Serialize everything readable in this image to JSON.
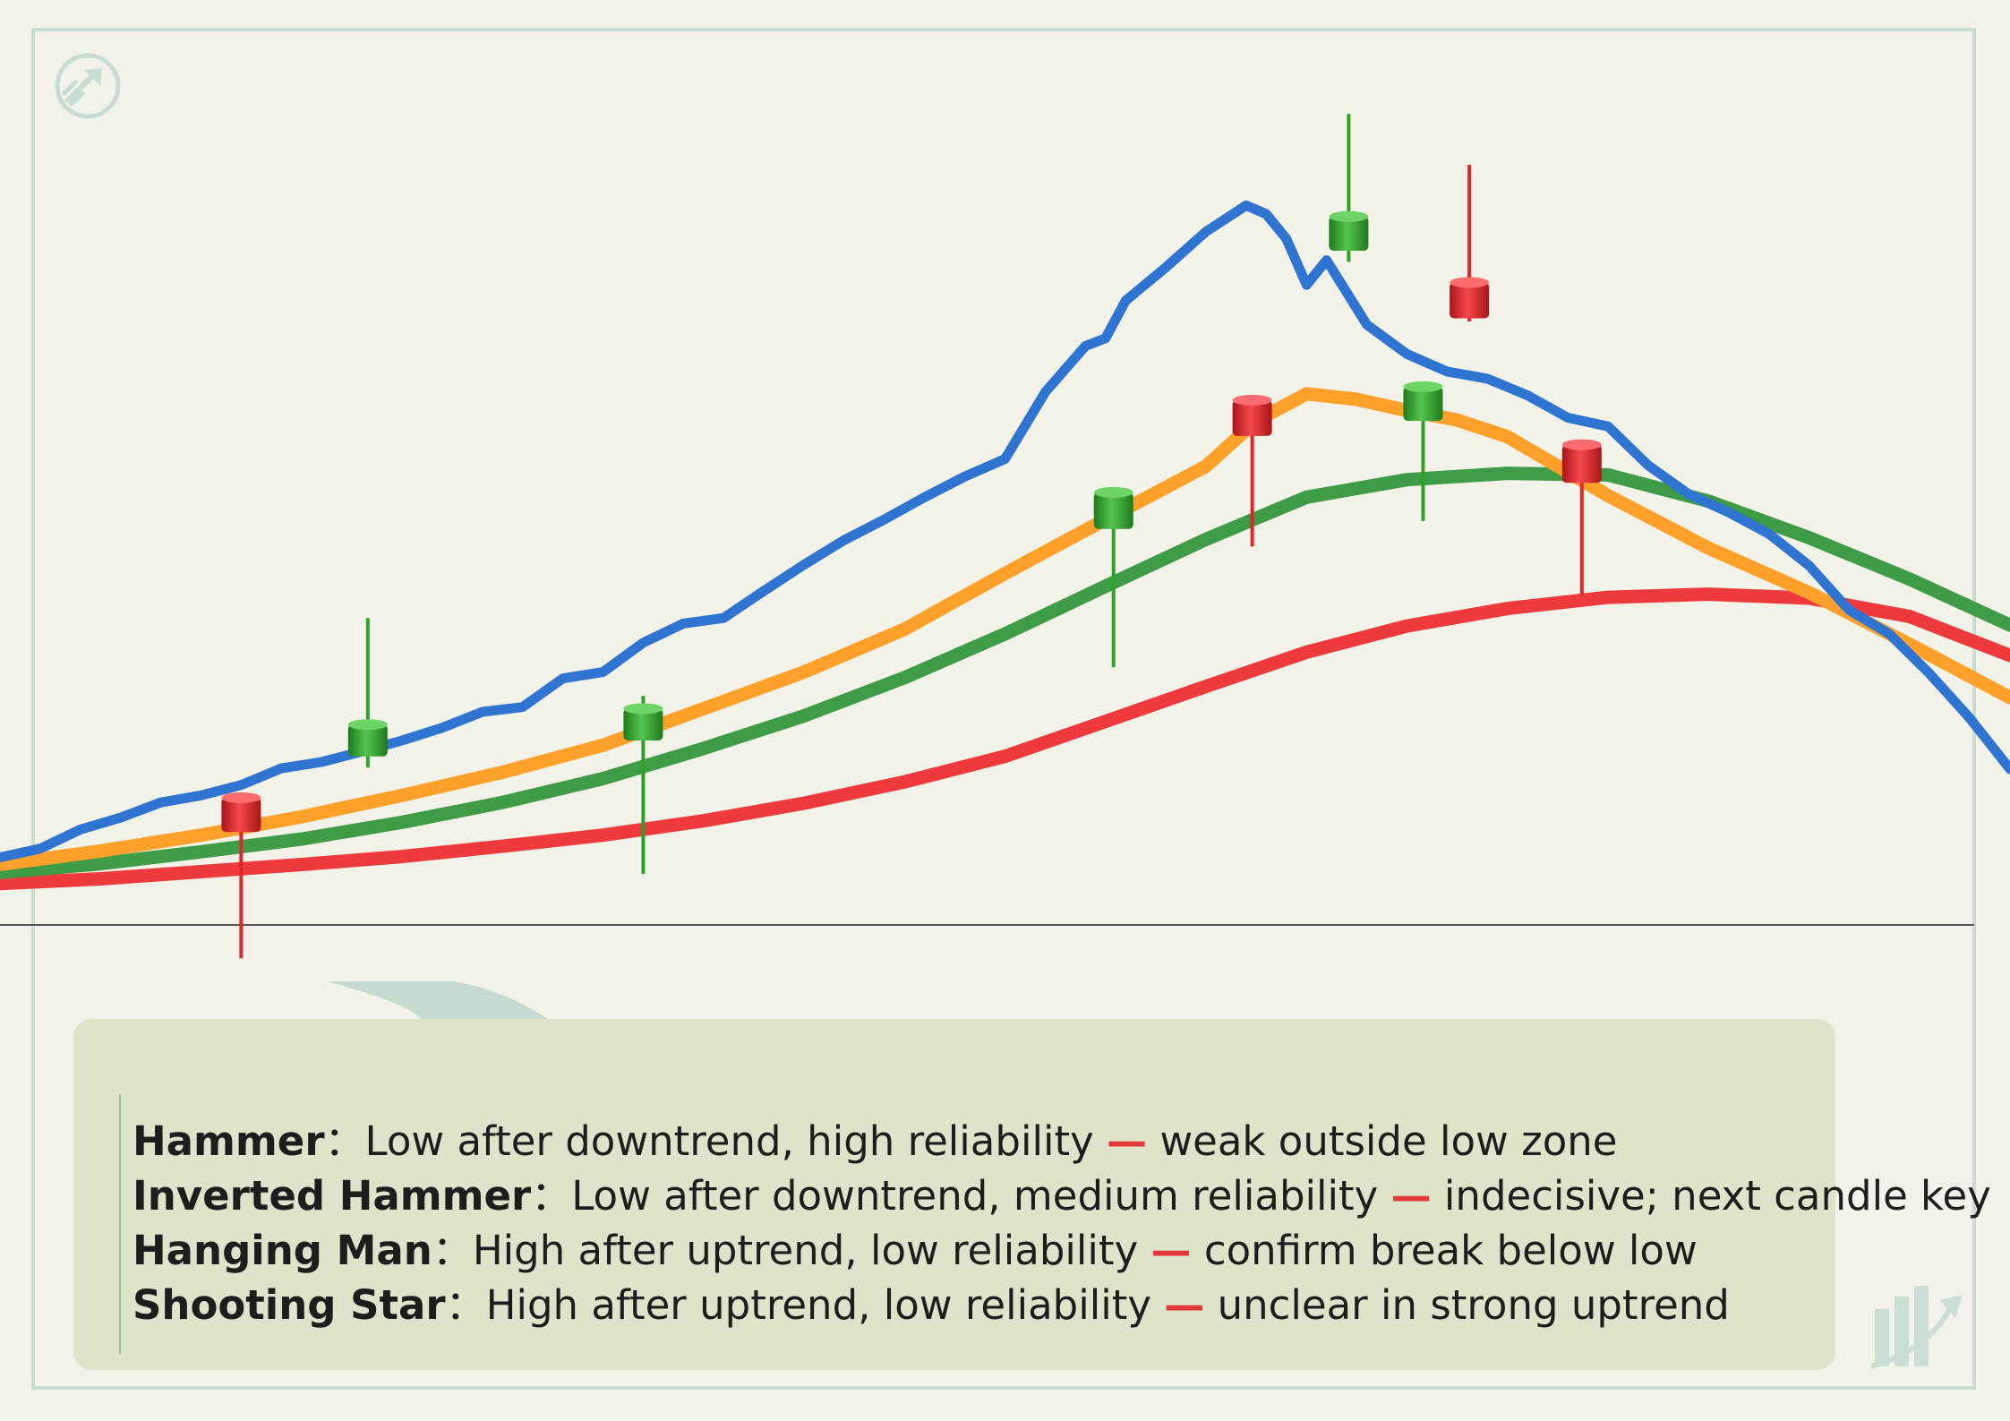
{
  "colors": {
    "background": "#f2f2e8",
    "frame": "#c7ddd3",
    "price_line": "#2f74d0",
    "orange_ma": "#ffa02a",
    "green_ma": "#3d9c45",
    "red_ma": "#ef3a3d",
    "bull_candle": "#2fa02a",
    "bear_candle": "#e0262b",
    "baseline": "#555555",
    "legend_panel": "#dfe3c9",
    "legend_dash": "#e23a3a",
    "logo": "#c7ddd3"
  },
  "icons": {
    "logo": "rising-arrow-circle-icon",
    "watermark": "rising-bars-arrow-icon"
  },
  "chart_data": {
    "type": "line",
    "title": "",
    "xlabel": "",
    "ylabel": "",
    "grid": false,
    "axes_labeled": false,
    "legend_placement": "bottom-left",
    "xlim": [
      0,
      100
    ],
    "ylim": [
      0,
      100
    ],
    "series": [
      {
        "role": "price",
        "color": "#2f74d0",
        "x": [
          0,
          2,
          4,
          6,
          8,
          10,
          12,
          14,
          16,
          18,
          20,
          22,
          24,
          26,
          28,
          30,
          32,
          34,
          36,
          38,
          40,
          42,
          44,
          46,
          48,
          50,
          52,
          54,
          55,
          56,
          58,
          60,
          62,
          63,
          64,
          65,
          66,
          68,
          70,
          72,
          74,
          76,
          78,
          80,
          82,
          84,
          86,
          88,
          90,
          92,
          94,
          96,
          98,
          100
        ],
        "y": [
          8.5,
          9.6,
          12,
          13.5,
          15.4,
          16.3,
          17.6,
          19.7,
          20.5,
          21.8,
          23.2,
          24.8,
          26.8,
          27.4,
          31,
          31.8,
          35.5,
          37.9,
          38.6,
          42,
          45.3,
          48.4,
          51,
          53.8,
          56.4,
          58.6,
          67,
          72.8,
          73.8,
          78.5,
          82.7,
          87.2,
          90.5,
          89.4,
          86.3,
          80.5,
          83.6,
          75.5,
          71.8,
          69.6,
          68.7,
          66.6,
          63.8,
          62.7,
          57.8,
          54.2,
          51.9,
          49.2,
          45.2,
          39.6,
          36.6,
          31.6,
          26,
          19.6
        ]
      },
      {
        "role": "ma-fast",
        "color": "#ffa02a",
        "x": [
          0,
          5,
          10,
          15,
          20,
          25,
          30,
          35,
          40,
          45,
          50,
          55,
          60,
          62.5,
          65,
          67.5,
          70,
          72.5,
          75,
          80,
          85,
          90,
          95,
          100
        ],
        "y": [
          7.6,
          9.3,
          11.3,
          13.6,
          16.3,
          19.2,
          22.6,
          27.2,
          31.8,
          37.2,
          44.2,
          51,
          57.7,
          63.4,
          66.8,
          66.1,
          64.7,
          63.5,
          61.4,
          54,
          47.4,
          41.8,
          35.3,
          28.6
        ]
      },
      {
        "role": "ma-medium",
        "color": "#3d9c45",
        "x": [
          0,
          5,
          10,
          15,
          20,
          25,
          30,
          35,
          40,
          45,
          50,
          55,
          60,
          65,
          70,
          75,
          80,
          85,
          90,
          95,
          100
        ],
        "y": [
          6.6,
          7.7,
          9.2,
          10.8,
          12.9,
          15.4,
          18.4,
          22.2,
          26.3,
          31.1,
          36.6,
          42.6,
          48.5,
          53.8,
          56,
          56.8,
          56.6,
          53.3,
          48.7,
          43.5,
          37.7
        ]
      },
      {
        "role": "ma-slow",
        "color": "#ef3a3d",
        "x": [
          0,
          5,
          10,
          15,
          20,
          25,
          30,
          35,
          40,
          45,
          50,
          55,
          60,
          65,
          70,
          75,
          80,
          85,
          90,
          95,
          100
        ],
        "y": [
          5.2,
          5.8,
          6.7,
          7.6,
          8.6,
          9.9,
          11.3,
          13.1,
          15.3,
          18,
          21.2,
          25.6,
          30,
          34.3,
          37.6,
          39.8,
          41.2,
          41.6,
          41.1,
          38.8,
          33.9
        ]
      }
    ],
    "candles": [
      {
        "x": 12,
        "open": 16,
        "close": 11.7,
        "high": 16,
        "low": -4.2,
        "color": "bear"
      },
      {
        "x": 18.3,
        "open": 21.2,
        "close": 25.2,
        "high": 38.6,
        "low": 19.8,
        "color": "bull"
      },
      {
        "x": 32,
        "open": 23.2,
        "close": 27.2,
        "high": 28.8,
        "low": 6.4,
        "color": "bull"
      },
      {
        "x": 55.4,
        "open": 49.8,
        "close": 54.4,
        "high": 54.4,
        "low": 32.4,
        "color": "bull"
      },
      {
        "x": 62.3,
        "open": 66,
        "close": 61.5,
        "high": 66,
        "low": 47.6,
        "color": "bear"
      },
      {
        "x": 67.1,
        "open": 84.8,
        "close": 89.1,
        "high": 102,
        "low": 83.4,
        "color": "bull"
      },
      {
        "x": 70.8,
        "open": 63.4,
        "close": 67.7,
        "high": 67.7,
        "low": 50.8,
        "color": "bull"
      },
      {
        "x": 73.1,
        "open": 80.8,
        "close": 76.3,
        "high": 95.6,
        "low": 75.9,
        "color": "bear"
      },
      {
        "x": 78.7,
        "open": 60.4,
        "close": 55.6,
        "high": 60.4,
        "low": 41.4,
        "color": "bear"
      }
    ]
  },
  "legend": {
    "items": [
      {
        "term": "Hammer",
        "sep": "：",
        "description": "Low after downtrend, high reliability",
        "dash": "—",
        "note": "weak outside low zone"
      },
      {
        "term": "Inverted Hammer",
        "sep": "：",
        "description": "Low after downtrend, medium reliability",
        "dash": "—",
        "note": "indecisive; next candle key"
      },
      {
        "term": "Hanging Man",
        "sep": "：",
        "description": "High after uptrend, low reliability",
        "dash": "—",
        "note": "confirm break below low"
      },
      {
        "term": "Shooting Star",
        "sep": "：",
        "description": "High after uptrend, low reliability",
        "dash": "—",
        "note": "unclear in strong uptrend"
      }
    ]
  }
}
